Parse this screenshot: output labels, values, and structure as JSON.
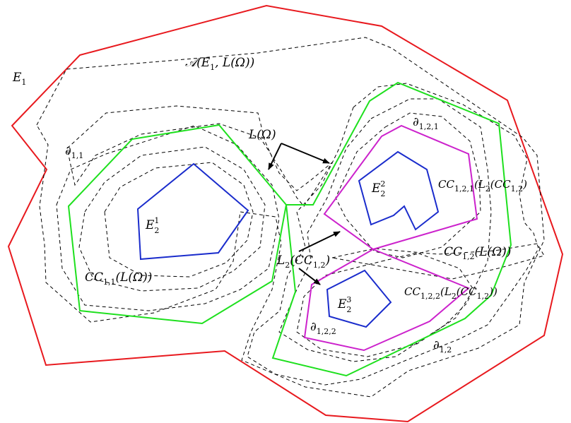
{
  "colors": {
    "outer_boundary": "#e8191e",
    "connected_component": "#1ee01e",
    "sub_component": "#cc22cc",
    "inner_set": "#1a2ccc",
    "dashed": "#000000",
    "arrow": "#000000"
  },
  "labels": {
    "e1": {
      "base": "E",
      "sub": "1"
    },
    "annulus": {
      "text": "𝒜(E",
      "sub": "1",
      "rest": ", L(Ω))"
    },
    "l_omega": "L(Ω)",
    "d11": {
      "base": "∂",
      "sub": "1,1"
    },
    "d121": {
      "base": "∂",
      "sub": "1,2,1"
    },
    "d122": {
      "base": "∂",
      "sub": "1,2,2"
    },
    "d12": {
      "base": "∂",
      "sub": "1,2"
    },
    "e21": {
      "base": "E",
      "sub": "2",
      "sup": "1"
    },
    "e22": {
      "base": "E",
      "sub": "2",
      "sup": "2"
    },
    "e23": {
      "base": "E",
      "sub": "2",
      "sup": "3"
    },
    "cc11": {
      "base": "CC",
      "sub": "1,1",
      "rest": "(L(Ω))"
    },
    "cc12": {
      "base": "CC",
      "sub": "1,2",
      "rest": "(L(Ω))"
    },
    "l2cc": {
      "base": "L",
      "sub": "2",
      "mid": "(CC",
      "sub2": "1,2",
      "rest": ")"
    },
    "cc121": {
      "base": "CC",
      "sub": "1,2,1",
      "mid": "(L",
      "sub2": "2",
      "mid2": "(CC",
      "sub3": "1,2",
      "rest": ")"
    },
    "cc122": {
      "base": "CC",
      "sub": "1,2,2",
      "mid": "(L",
      "sub2": "2",
      "mid2": "(CC",
      "sub3": "1,2",
      "rest": "))"
    }
  }
}
